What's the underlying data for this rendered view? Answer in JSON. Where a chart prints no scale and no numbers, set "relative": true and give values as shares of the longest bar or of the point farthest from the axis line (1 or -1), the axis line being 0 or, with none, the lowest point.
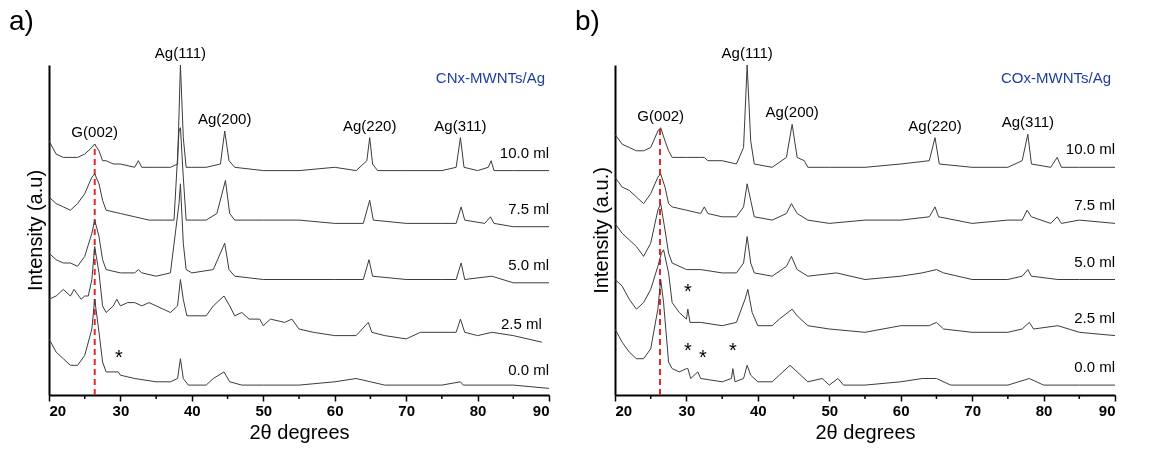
{
  "chart_data": [
    {
      "type": "line",
      "title": "a)",
      "subtitle": "CNx-MWNTs/Ag",
      "xlabel": "2θ degrees",
      "ylabel": "Intensity (a.u)",
      "relative": true,
      "tick_labels": "x",
      "xlim": [
        20,
        90
      ],
      "xticks": [
        20,
        {
          "value": 25,
          "label": null
        },
        30,
        {
          "value": 35,
          "label": null
        },
        40,
        {
          "value": 45,
          "label": null
        },
        50,
        {
          "value": 55,
          "label": null
        },
        60,
        {
          "value": 65,
          "label": null
        },
        70,
        {
          "value": 75,
          "label": null
        },
        80,
        {
          "value": 85,
          "label": null
        },
        90
      ],
      "ref_lines": [
        {
          "axis": "x",
          "value": 26.4,
          "color": "#e8262a",
          "line_style": "dashed"
        }
      ],
      "annotations": [
        {
          "text": "G(002)",
          "x": 26.4,
          "y": 0.76
        },
        {
          "text": "Ag(111)",
          "x": 38.4,
          "y": 1.0
        },
        {
          "text": "Ag(200)",
          "x": 44.6,
          "y": 0.8
        },
        {
          "text": "Ag(220)",
          "x": 64.9,
          "y": 0.78
        },
        {
          "text": "Ag(311)",
          "x": 77.6,
          "y": 0.78
        },
        {
          "text": "*",
          "x": 29.8,
          "y": 0.07
        }
      ],
      "series": [
        {
          "name": "10.0 ml",
          "color": "#3c3c3c",
          "x": [
            20,
            21,
            22,
            24,
            25,
            26,
            26.4,
            27,
            27.5,
            28,
            29,
            30,
            32,
            32.5,
            33,
            35,
            37,
            38,
            38.4,
            38.8,
            39.2,
            40,
            42,
            44,
            44.6,
            45.2,
            46,
            50,
            55,
            60,
            63,
            64.5,
            64.9,
            65.3,
            66,
            70,
            75,
            77,
            77.6,
            78.1,
            80,
            81.5,
            81.9,
            82.3,
            85,
            90
          ],
          "values": [
            0.77,
            0.73,
            0.72,
            0.72,
            0.73,
            0.75,
            0.76,
            0.74,
            0.71,
            0.71,
            0.7,
            0.7,
            0.69,
            0.71,
            0.69,
            0.69,
            0.69,
            0.7,
            1.0,
            0.78,
            0.69,
            0.69,
            0.69,
            0.7,
            0.8,
            0.71,
            0.69,
            0.68,
            0.68,
            0.69,
            0.68,
            0.71,
            0.78,
            0.7,
            0.68,
            0.68,
            0.68,
            0.69,
            0.78,
            0.69,
            0.68,
            0.69,
            0.71,
            0.68,
            0.68,
            0.68
          ]
        },
        {
          "name": "7.5 ml",
          "color": "#3c3c3c",
          "x": [
            20,
            21,
            22,
            23,
            24,
            25,
            26,
            26.4,
            27,
            27.5,
            28,
            30,
            32,
            34,
            36,
            37.5,
            38.2,
            38.4,
            38.8,
            39.2,
            40,
            42,
            43.5,
            44.7,
            45.3,
            46,
            50,
            55,
            60,
            64,
            64.9,
            65.4,
            70,
            75,
            77,
            77.7,
            78.2,
            81,
            81.8,
            82.3,
            85,
            90
          ],
          "values": [
            0.6,
            0.58,
            0.57,
            0.56,
            0.58,
            0.61,
            0.66,
            0.67,
            0.64,
            0.59,
            0.56,
            0.55,
            0.54,
            0.53,
            0.53,
            0.53,
            0.8,
            0.81,
            0.66,
            0.53,
            0.53,
            0.53,
            0.55,
            0.65,
            0.55,
            0.53,
            0.53,
            0.53,
            0.52,
            0.52,
            0.59,
            0.53,
            0.52,
            0.52,
            0.52,
            0.57,
            0.53,
            0.52,
            0.54,
            0.52,
            0.51,
            0.51
          ]
        },
        {
          "name": "5.0 ml",
          "color": "#3c3c3c",
          "x": [
            20,
            21,
            22,
            23,
            24,
            25,
            26,
            26.4,
            27,
            27.5,
            28,
            30,
            32,
            32.5,
            33,
            35,
            37,
            38.2,
            38.4,
            38.8,
            39.2,
            40,
            43,
            44.6,
            45.2,
            46,
            50,
            55,
            60,
            64,
            64.8,
            65.3,
            70,
            75,
            77,
            77.7,
            78.2,
            82,
            85,
            90
          ],
          "values": [
            0.43,
            0.41,
            0.4,
            0.4,
            0.39,
            0.42,
            0.49,
            0.53,
            0.48,
            0.41,
            0.38,
            0.37,
            0.37,
            0.38,
            0.37,
            0.36,
            0.37,
            0.58,
            0.64,
            0.46,
            0.38,
            0.37,
            0.38,
            0.46,
            0.38,
            0.36,
            0.35,
            0.35,
            0.35,
            0.35,
            0.41,
            0.36,
            0.35,
            0.35,
            0.35,
            0.4,
            0.35,
            0.36,
            0.34,
            0.34
          ]
        },
        {
          "name": "2.5 ml",
          "color": "#3c3c3c",
          "x": [
            20,
            21,
            22,
            23,
            23.5,
            24.5,
            25,
            25.5,
            26,
            26.4,
            27,
            27.5,
            28,
            29,
            29.5,
            30,
            31,
            32,
            33,
            34,
            35,
            37,
            38,
            38.4,
            38.8,
            39.3,
            40,
            42,
            43,
            44.5,
            45.3,
            46,
            47,
            48,
            49.5,
            50,
            51,
            53,
            54,
            55,
            57,
            60,
            63,
            64.7,
            65.2,
            67,
            70,
            72,
            75,
            77,
            77.6,
            78.2,
            80,
            82,
            85,
            89
          ],
          "values": [
            0.29,
            0.3,
            0.32,
            0.3,
            0.32,
            0.29,
            0.3,
            0.3,
            0.35,
            0.45,
            0.37,
            0.27,
            0.25,
            0.27,
            0.29,
            0.27,
            0.28,
            0.28,
            0.27,
            0.28,
            0.27,
            0.25,
            0.27,
            0.35,
            0.29,
            0.24,
            0.24,
            0.24,
            0.27,
            0.3,
            0.27,
            0.24,
            0.25,
            0.23,
            0.23,
            0.21,
            0.23,
            0.22,
            0.23,
            0.2,
            0.19,
            0.18,
            0.18,
            0.22,
            0.19,
            0.18,
            0.17,
            0.19,
            0.19,
            0.19,
            0.23,
            0.19,
            0.18,
            0.19,
            0.18,
            0.16
          ]
        },
        {
          "name": "0.0 ml",
          "color": "#3c3c3c",
          "x": [
            20,
            21,
            22,
            23,
            24,
            25,
            26,
            26.4,
            27,
            27.5,
            28,
            29,
            29.7,
            30,
            32,
            35,
            37,
            38,
            38.4,
            38.8,
            39.5,
            42,
            43,
            44.5,
            45.3,
            47,
            50,
            55,
            60,
            63,
            65,
            67,
            70,
            75,
            77.6,
            78,
            80,
            85,
            90
          ],
          "values": [
            0.17,
            0.13,
            0.11,
            0.09,
            0.09,
            0.12,
            0.2,
            0.29,
            0.19,
            0.1,
            0.07,
            0.07,
            0.07,
            0.06,
            0.05,
            0.04,
            0.04,
            0.05,
            0.11,
            0.05,
            0.03,
            0.03,
            0.05,
            0.07,
            0.04,
            0.03,
            0.03,
            0.03,
            0.04,
            0.05,
            0.04,
            0.03,
            0.03,
            0.03,
            0.04,
            0.03,
            0.03,
            0.03,
            0.02
          ]
        }
      ]
    },
    {
      "type": "line",
      "title": "b)",
      "subtitle": "COx-MWNTs/Ag",
      "xlabel": "2θ degrees",
      "ylabel": "Intensity (a.u.)",
      "relative": true,
      "tick_labels": "x",
      "xlim": [
        20,
        90
      ],
      "xticks": [
        20,
        {
          "value": 25,
          "label": null
        },
        30,
        {
          "value": 35,
          "label": null
        },
        40,
        {
          "value": 45,
          "label": null
        },
        50,
        {
          "value": 55,
          "label": null
        },
        60,
        {
          "value": 65,
          "label": null
        },
        70,
        {
          "value": 75,
          "label": null
        },
        80,
        {
          "value": 85,
          "label": null
        },
        90
      ],
      "ref_lines": [
        {
          "axis": "x",
          "value": 26.3,
          "color": "#e8262a",
          "line_style": "dashed"
        }
      ],
      "annotations": [
        {
          "text": "G(002)",
          "x": 26.4,
          "y": 0.81
        },
        {
          "text": "Ag(111)",
          "x": 38.5,
          "y": 1.0
        },
        {
          "text": "Ag(200)",
          "x": 44.8,
          "y": 0.82
        },
        {
          "text": "Ag(220)",
          "x": 64.8,
          "y": 0.78
        },
        {
          "text": "Ag(311)",
          "x": 77.8,
          "y": 0.79
        },
        {
          "text": "*",
          "x": 30.2,
          "y": 0.27
        },
        {
          "text": "*",
          "x": 30.2,
          "y": 0.09
        },
        {
          "text": "*",
          "x": 32.3,
          "y": 0.07
        },
        {
          "text": "*",
          "x": 36.5,
          "y": 0.09
        }
      ],
      "series": [
        {
          "name": "10.0 ml",
          "color": "#3c3c3c",
          "x": [
            20,
            21,
            22,
            23,
            24,
            25,
            26,
            26.4,
            27,
            27.5,
            28,
            30,
            32,
            32.5,
            33,
            35,
            37,
            38,
            38.5,
            39,
            39.5,
            42,
            44,
            44.8,
            45.5,
            46.5,
            47,
            50,
            55,
            60,
            64,
            64.8,
            65.4,
            70,
            75,
            77,
            77.8,
            78.3,
            81,
            81.9,
            82.5,
            85,
            90
          ],
          "values": [
            0.79,
            0.76,
            0.75,
            0.74,
            0.74,
            0.75,
            0.8,
            0.81,
            0.77,
            0.74,
            0.72,
            0.72,
            0.72,
            0.72,
            0.71,
            0.71,
            0.7,
            0.75,
            1.0,
            0.77,
            0.7,
            0.69,
            0.72,
            0.82,
            0.72,
            0.71,
            0.69,
            0.69,
            0.69,
            0.7,
            0.71,
            0.78,
            0.7,
            0.69,
            0.69,
            0.71,
            0.79,
            0.7,
            0.69,
            0.72,
            0.69,
            0.69,
            0.69
          ]
        },
        {
          "name": "7.5 ml",
          "color": "#3c3c3c",
          "x": [
            20,
            21,
            22,
            23,
            24,
            25,
            26,
            26.4,
            27,
            27.5,
            28,
            30,
            32,
            32.5,
            33,
            35,
            37,
            38,
            38.5,
            39,
            39.5,
            42,
            44,
            44.7,
            45.5,
            47,
            50,
            55,
            60,
            64,
            64.8,
            65.3,
            70,
            75,
            77,
            77.7,
            78.3,
            81,
            81.9,
            82.5,
            85,
            90
          ],
          "values": [
            0.66,
            0.63,
            0.62,
            0.6,
            0.58,
            0.61,
            0.66,
            0.67,
            0.63,
            0.58,
            0.57,
            0.56,
            0.55,
            0.57,
            0.55,
            0.54,
            0.54,
            0.57,
            0.64,
            0.59,
            0.54,
            0.53,
            0.55,
            0.58,
            0.55,
            0.53,
            0.52,
            0.53,
            0.53,
            0.54,
            0.57,
            0.54,
            0.52,
            0.53,
            0.53,
            0.56,
            0.54,
            0.52,
            0.54,
            0.52,
            0.53,
            0.52
          ]
        },
        {
          "name": "5.0 ml",
          "color": "#3c3c3c",
          "x": [
            20,
            21,
            22,
            23,
            24,
            25,
            26,
            26.4,
            27,
            27.5,
            28,
            30,
            32,
            35,
            37,
            38,
            38.5,
            39,
            39.5,
            42,
            44,
            44.7,
            45.5,
            47,
            51,
            55,
            60,
            63,
            65,
            66,
            70,
            75,
            77,
            77.8,
            78.3,
            82,
            85,
            90
          ],
          "values": [
            0.52,
            0.49,
            0.47,
            0.45,
            0.42,
            0.46,
            0.56,
            0.58,
            0.5,
            0.43,
            0.4,
            0.38,
            0.38,
            0.37,
            0.37,
            0.4,
            0.48,
            0.4,
            0.37,
            0.36,
            0.39,
            0.42,
            0.38,
            0.36,
            0.37,
            0.35,
            0.36,
            0.37,
            0.38,
            0.37,
            0.35,
            0.35,
            0.36,
            0.38,
            0.36,
            0.35,
            0.35,
            0.35
          ]
        },
        {
          "name": "2.5 ml",
          "color": "#3c3c3c",
          "x": [
            20,
            21,
            22,
            23,
            24,
            25,
            26,
            26.5,
            26.8,
            27.5,
            28,
            29,
            30,
            30.2,
            30.5,
            32,
            35,
            37,
            38.2,
            38.6,
            39.2,
            40,
            42,
            43,
            44.8,
            45.5,
            47,
            50,
            55,
            60,
            64,
            65,
            66,
            70,
            75,
            77,
            78,
            78.6,
            82,
            85,
            90
          ],
          "values": [
            0.35,
            0.33,
            0.29,
            0.26,
            0.28,
            0.32,
            0.39,
            0.43,
            0.44,
            0.37,
            0.28,
            0.25,
            0.23,
            0.26,
            0.22,
            0.22,
            0.21,
            0.22,
            0.29,
            0.32,
            0.25,
            0.21,
            0.21,
            0.23,
            0.26,
            0.24,
            0.21,
            0.2,
            0.19,
            0.21,
            0.21,
            0.22,
            0.2,
            0.19,
            0.19,
            0.2,
            0.22,
            0.2,
            0.21,
            0.19,
            0.18
          ]
        },
        {
          "name": "0.0 ml",
          "color": "#3c3c3c",
          "x": [
            20,
            21,
            22,
            23,
            24,
            25,
            26,
            26.4,
            26.8,
            27.5,
            28,
            29,
            30,
            30.2,
            30.6,
            31.6,
            32,
            35,
            36.3,
            36.5,
            36.8,
            38,
            38.5,
            39,
            40,
            42,
            43,
            44.5,
            45.5,
            47,
            49,
            50,
            51.2,
            52,
            55,
            60,
            63,
            65,
            67,
            70,
            75,
            78,
            80,
            85,
            90
          ],
          "values": [
            0.2,
            0.16,
            0.13,
            0.11,
            0.11,
            0.14,
            0.26,
            0.35,
            0.28,
            0.1,
            0.08,
            0.07,
            0.08,
            0.08,
            0.05,
            0.07,
            0.05,
            0.04,
            0.05,
            0.08,
            0.04,
            0.05,
            0.09,
            0.06,
            0.04,
            0.04,
            0.06,
            0.09,
            0.07,
            0.04,
            0.05,
            0.03,
            0.05,
            0.03,
            0.03,
            0.04,
            0.05,
            0.05,
            0.03,
            0.03,
            0.03,
            0.05,
            0.03,
            0.03,
            0.03
          ]
        }
      ]
    }
  ]
}
